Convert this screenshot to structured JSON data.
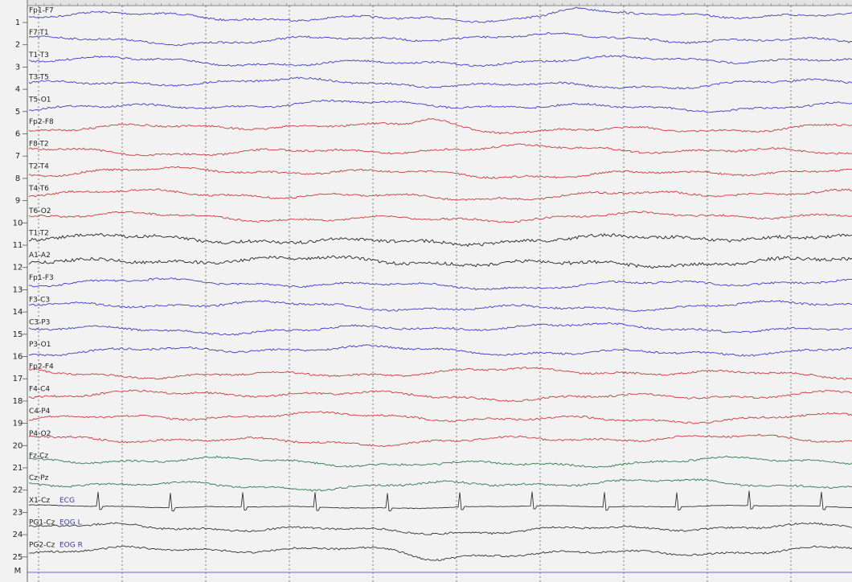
{
  "channels": [
    {
      "number": "1",
      "label": "Fp1-F7",
      "color": "#3b3bd0"
    },
    {
      "number": "2",
      "label": "F7-T1",
      "color": "#3b3bd0"
    },
    {
      "number": "3",
      "label": "T1-T3",
      "color": "#3b3bd0"
    },
    {
      "number": "4",
      "label": "T3-T5",
      "color": "#3b3bd0"
    },
    {
      "number": "5",
      "label": "T5-O1",
      "color": "#3b3bd0"
    },
    {
      "number": "6",
      "label": "Fp2-F8",
      "color": "#d03838"
    },
    {
      "number": "7",
      "label": "F8-T2",
      "color": "#d03838"
    },
    {
      "number": "8",
      "label": "T2-T4",
      "color": "#d03838"
    },
    {
      "number": "9",
      "label": "T4-T6",
      "color": "#d03838"
    },
    {
      "number": "10",
      "label": "T6-O2",
      "color": "#d03838"
    },
    {
      "number": "11",
      "label": "T1-T2",
      "color": "#222222"
    },
    {
      "number": "12",
      "label": "A1-A2",
      "color": "#222222"
    },
    {
      "number": "13",
      "label": "Fp1-F3",
      "color": "#3b3bd0"
    },
    {
      "number": "14",
      "label": "F3-C3",
      "color": "#3b3bd0"
    },
    {
      "number": "15",
      "label": "C3-P3",
      "color": "#3b3bd0"
    },
    {
      "number": "16",
      "label": "P3-O1",
      "color": "#3b3bd0"
    },
    {
      "number": "17",
      "label": "Fp2-F4",
      "color": "#d03838"
    },
    {
      "number": "18",
      "label": "F4-C4",
      "color": "#d03838"
    },
    {
      "number": "19",
      "label": "C4-P4",
      "color": "#d03838"
    },
    {
      "number": "20",
      "label": "P4-O2",
      "color": "#d03838"
    },
    {
      "number": "21",
      "label": "Fz-Cz",
      "color": "#2e7a4c"
    },
    {
      "number": "22",
      "label": "Cz-Pz",
      "color": "#2e7a4c"
    },
    {
      "number": "23",
      "label": "X1-Cz",
      "tag": "ECG",
      "color": "#333333"
    },
    {
      "number": "24",
      "label": "PG1-Cz",
      "tag": "EOG L",
      "color": "#333333"
    },
    {
      "number": "25",
      "label": "PG2-Cz",
      "tag": "EOG R",
      "color": "#333333"
    }
  ],
  "marker_row": "M"
}
